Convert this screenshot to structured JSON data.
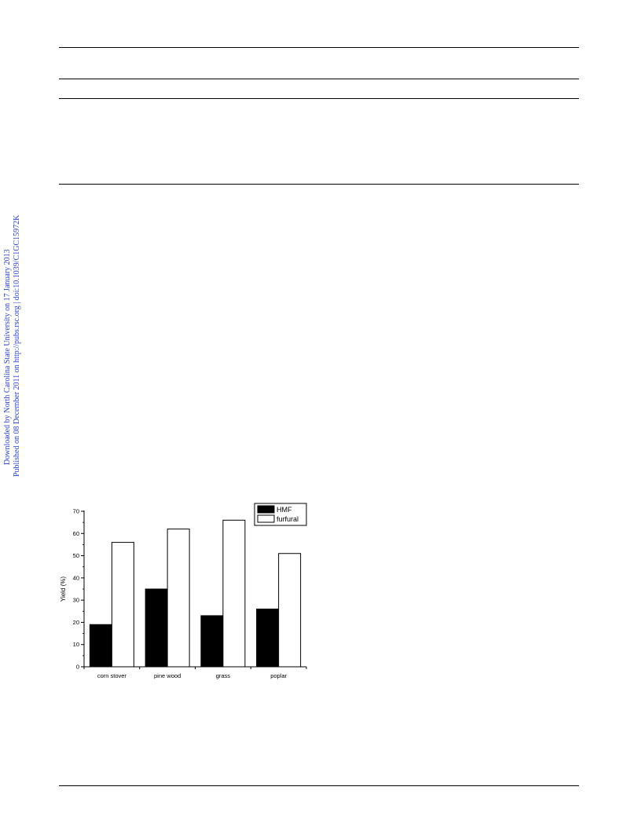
{
  "sidebar": {
    "line1": "Downloaded by North Carolina State University on 17 January 2013",
    "line2": "Published on 08 December 2011 on http://pubs.rsc.org | doi:10.1039/C1GC15972K"
  },
  "chart_data": {
    "type": "bar",
    "categories": [
      "corn stover",
      "pine wood",
      "grass",
      "poplar"
    ],
    "series": [
      {
        "name": "HMF",
        "values": [
          19,
          35,
          23,
          26
        ],
        "color": "#000000"
      },
      {
        "name": "furfural",
        "values": [
          56,
          62,
          66,
          51
        ],
        "color": "#ffffff"
      }
    ],
    "xlabel": "",
    "ylabel": "Yield (%)",
    "ylim": [
      0,
      70
    ],
    "yticks": [
      0,
      10,
      20,
      30,
      40,
      50,
      60,
      70
    ],
    "grid": false,
    "legend": "top-right"
  }
}
